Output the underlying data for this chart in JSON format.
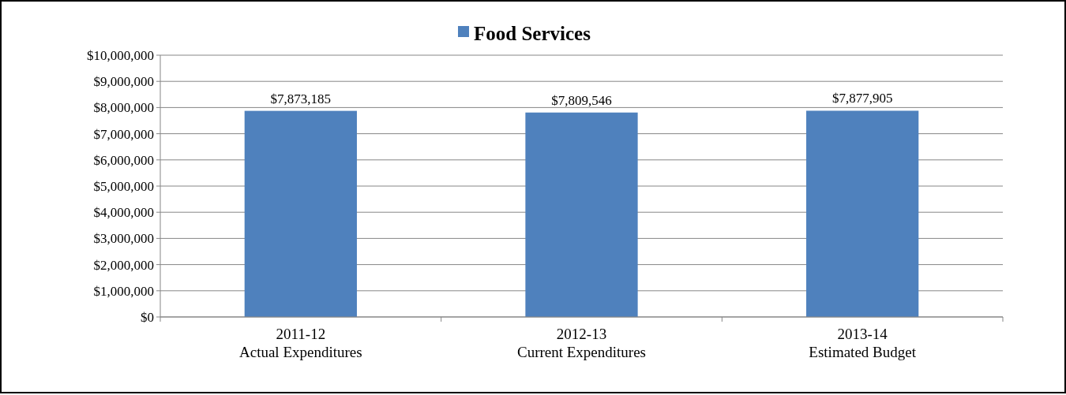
{
  "chart_data": {
    "type": "bar",
    "categories": [
      "2011-12\nActual Expenditures",
      "2012-13\nCurrent Expenditures",
      "2013-14\nEstimated Budget"
    ],
    "series": [
      {
        "name": "Food Services",
        "color": "#4f81bd",
        "values": [
          7873185,
          7809546,
          7877905
        ],
        "value_labels": [
          "$7,873,185",
          "$7,809,546",
          "$7,877,905"
        ]
      }
    ],
    "ylim": [
      0,
      10000000
    ],
    "yticks": [
      {
        "value": 0,
        "label": "$0"
      },
      {
        "value": 1000000,
        "label": "$1,000,000"
      },
      {
        "value": 2000000,
        "label": "$2,000,000"
      },
      {
        "value": 3000000,
        "label": "$3,000,000"
      },
      {
        "value": 4000000,
        "label": "$4,000,000"
      },
      {
        "value": 5000000,
        "label": "$5,000,000"
      },
      {
        "value": 6000000,
        "label": "$6,000,000"
      },
      {
        "value": 7000000,
        "label": "$7,000,000"
      },
      {
        "value": 8000000,
        "label": "$8,000,000"
      },
      {
        "value": 9000000,
        "label": "$9,000,000"
      },
      {
        "value": 10000000,
        "label": "$10,000,000"
      }
    ],
    "grid": "y",
    "legend": "top"
  }
}
